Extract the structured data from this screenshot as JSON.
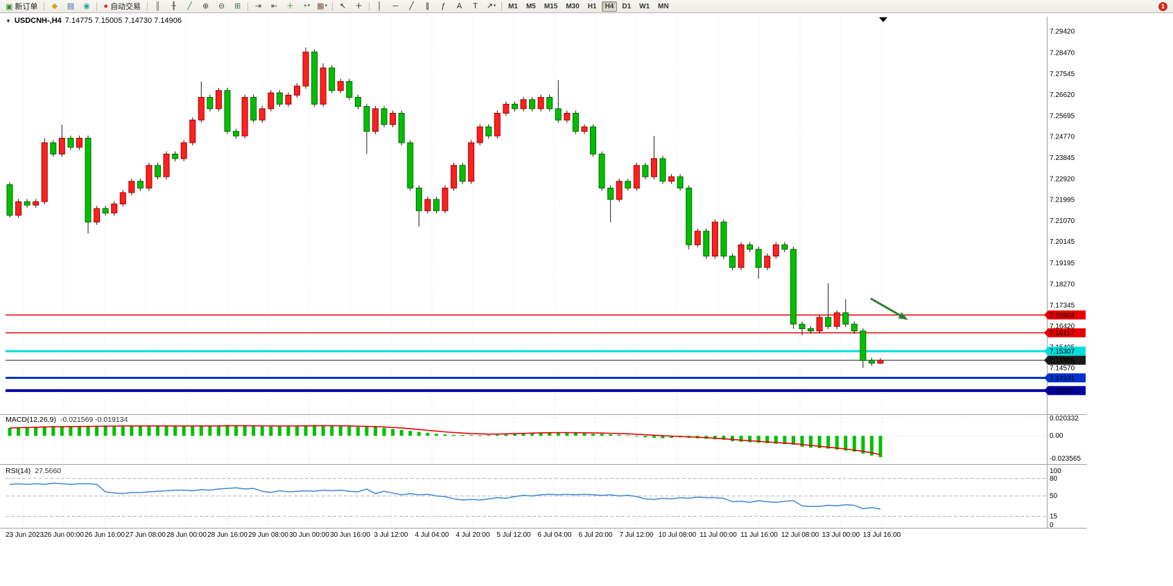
{
  "toolbar": {
    "items": [
      {
        "type": "button",
        "name": "new-order-button",
        "glyph": "▣",
        "color": "#2e8b2e",
        "label": "新订单"
      },
      {
        "type": "sep"
      },
      {
        "type": "icon",
        "name": "market-watch-icon",
        "glyph": "◆",
        "color": "#d4a017"
      },
      {
        "type": "icon",
        "name": "data-window-icon",
        "glyph": "▤",
        "color": "#4169aa"
      },
      {
        "type": "icon",
        "name": "navigator-icon",
        "glyph": "◉",
        "color": "#2aa198"
      },
      {
        "type": "sep"
      },
      {
        "type": "button",
        "name": "autotrading-button",
        "glyph": "●",
        "color": "#d22a1e",
        "label": "自动交易"
      },
      {
        "type": "sep"
      },
      {
        "type": "icon",
        "name": "bar-chart-icon",
        "glyph": "║",
        "color": "#555555"
      },
      {
        "type": "icon",
        "name": "candlestick-chart-icon",
        "glyph": "╂",
        "color": "#555555"
      },
      {
        "type": "icon",
        "name": "line-chart-icon",
        "glyph": "╱",
        "color": "#3a7d3a"
      },
      {
        "type": "icon",
        "name": "zoom-in-icon",
        "glyph": "⊕",
        "color": "#444444"
      },
      {
        "type": "icon",
        "name": "zoom-out-icon",
        "glyph": "⊖",
        "color": "#444444"
      },
      {
        "type": "icon",
        "name": "tile-windows-icon",
        "glyph": "⊞",
        "color": "#3a7d3a"
      },
      {
        "type": "sep"
      },
      {
        "type": "icon",
        "name": "auto-scroll-icon",
        "glyph": "⇥",
        "color": "#444444"
      },
      {
        "type": "icon",
        "name": "chart-shift-icon",
        "glyph": "⇤",
        "color": "#444444"
      },
      {
        "type": "icon",
        "name": "indicators-icon",
        "glyph": "＋",
        "color": "#2e8b2e"
      },
      {
        "type": "icon",
        "name": "periods-icon",
        "glyph": "◔",
        "color": "#444444",
        "caret": true
      },
      {
        "type": "icon",
        "name": "templates-icon",
        "glyph": "▦",
        "color": "#7a5c2e",
        "caret": true
      },
      {
        "type": "sep"
      },
      {
        "type": "icon",
        "name": "cursor-icon",
        "glyph": "↖",
        "color": "#222222"
      },
      {
        "type": "icon",
        "name": "crosshair-icon",
        "glyph": "＋",
        "color": "#222222"
      },
      {
        "type": "sep"
      },
      {
        "type": "icon",
        "name": "vertical-line-icon",
        "glyph": "│",
        "color": "#222222"
      },
      {
        "type": "icon",
        "name": "horizontal-line-icon",
        "glyph": "─",
        "color": "#222222"
      },
      {
        "type": "icon",
        "name": "trendline-icon",
        "glyph": "╱",
        "color": "#222222"
      },
      {
        "type": "icon",
        "name": "channel-icon",
        "glyph": "∥",
        "color": "#222222"
      },
      {
        "type": "icon",
        "name": "fibonacci-icon",
        "glyph": "ƒ",
        "color": "#222222"
      },
      {
        "type": "icon",
        "name": "text-icon",
        "glyph": "A",
        "color": "#222222"
      },
      {
        "type": "icon",
        "name": "label-icon",
        "glyph": "T",
        "color": "#222222"
      },
      {
        "type": "icon",
        "name": "arrows-icon",
        "glyph": "↗",
        "color": "#222222",
        "caret": true
      },
      {
        "type": "sep"
      }
    ],
    "timeframes": [
      "M1",
      "M5",
      "M15",
      "M30",
      "H1",
      "H4",
      "D1",
      "W1",
      "MN"
    ],
    "active_timeframe": "H4",
    "alert_badge": "1"
  },
  "chart_data": {
    "type": "candlestick",
    "symbol": "USDCNH-",
    "timeframe": "H4",
    "header_text": "USDCNH-,H4",
    "header_ohlc": "7.14775 7.15005 7.14730 7.14906",
    "up_color": "#ff2020",
    "down_color": "#00c000",
    "first_open": 7.2265,
    "default_wick": 0.0012,
    "closes": [
      7.213,
      7.219,
      7.2175,
      7.219,
      7.245,
      7.24,
      7.247,
      7.243,
      7.247,
      7.21,
      7.216,
      7.214,
      7.218,
      7.223,
      7.228,
      7.225,
      7.235,
      7.23,
      7.24,
      7.238,
      7.245,
      7.255,
      7.265,
      7.26,
      7.268,
      7.25,
      7.248,
      7.265,
      7.255,
      7.26,
      7.267,
      7.262,
      7.266,
      7.27,
      7.285,
      7.262,
      7.278,
      7.268,
      7.272,
      7.265,
      7.261,
      7.25,
      7.26,
      7.253,
      7.258,
      7.245,
      7.225,
      7.215,
      7.22,
      7.215,
      7.225,
      7.235,
      7.228,
      7.245,
      7.252,
      7.248,
      7.258,
      7.262,
      7.26,
      7.264,
      7.26,
      7.265,
      7.26,
      7.255,
      7.258,
      7.25,
      7.252,
      7.24,
      7.225,
      7.22,
      7.228,
      7.225,
      7.235,
      7.23,
      7.238,
      7.228,
      7.23,
      7.225,
      7.2,
      7.206,
      7.195,
      7.21,
      7.195,
      7.19,
      7.2,
      7.198,
      7.19,
      7.195,
      7.2,
      7.198,
      7.165,
      7.163,
      7.162,
      7.168,
      7.164,
      7.17,
      7.165,
      7.162,
      7.149,
      7.1478,
      7.14906
    ],
    "high_overrides": {
      "4": 7.247,
      "6": 7.253,
      "22": 7.272,
      "34": 7.287,
      "36": 7.28,
      "63": 7.2725,
      "74": 7.248,
      "94": 7.183,
      "96": 7.176,
      "100": 7.15005
    },
    "low_overrides": {
      "0": 7.212,
      "9": 7.205,
      "41": 7.24,
      "47": 7.208,
      "69": 7.21,
      "78": 7.198,
      "86": 7.185,
      "90": 7.163,
      "91": 7.16,
      "98": 7.1457,
      "100": 7.1473
    },
    "y_axis_labels": [
      "7.29420",
      "7.28470",
      "7.27545",
      "7.26620",
      "7.25695",
      "7.24770",
      "7.23845",
      "7.22920",
      "7.21995",
      "7.21070",
      "7.20145",
      "7.19195",
      "7.18270",
      "7.17345",
      "7.16420",
      "7.15495",
      "7.14570"
    ],
    "x_labels": [
      "23 Jun 2023",
      "26 Jun 00:00",
      "26 Jun 16:00",
      "27 Jun 08:00",
      "28 Jun 00:00",
      "28 Jun 16:00",
      "29 Jun 08:00",
      "30 Jun 00:00",
      "30 Jun 16:00",
      "3 Jul 12:00",
      "4 Jul 04:00",
      "4 Jul 20:00",
      "5 Jul 12:00",
      "6 Jul 04:00",
      "6 Jul 20:00",
      "7 Jul 12:00",
      "10 Jul 08:00",
      "11 Jul 00:00",
      "11 Jul 16:00",
      "12 Jul 08:00",
      "13 Jul 00:00",
      "13 Jul 16:00"
    ],
    "hlines": [
      {
        "label": "7.16903",
        "value": 7.16903,
        "color": "#e60000",
        "badge_bg": "#e60000",
        "text_color": "#ffffff",
        "thickness": 1.5
      },
      {
        "label": "7.16117",
        "value": 7.16117,
        "color": "#e60000",
        "badge_bg": "#e60000",
        "text_color": "#ffffff",
        "thickness": 1.5
      },
      {
        "label": "7.15307",
        "value": 7.15307,
        "color": "#00dede",
        "badge_bg": "#00dede",
        "text_color": "#00249a",
        "thickness": 3
      },
      {
        "label": "7.14906",
        "value": 7.14906,
        "color": "#1a1a1a",
        "badge_bg": "#1a1a1a",
        "text_color": "#ffffff",
        "thickness": 1
      },
      {
        "label": "7.14131",
        "value": 7.14131,
        "color": "#0033cc",
        "badge_bg": "#0033cc",
        "text_color": "#ffffff",
        "thickness": 3
      },
      {
        "label": "7.13570",
        "value": 7.1357,
        "color": "#0000a0",
        "badge_bg": "#0000a0",
        "text_color": "#ffffff",
        "thickness": 4
      }
    ],
    "macd": {
      "label": "MACD(12,26,9)",
      "values_text": "-0.021569 -0.019134",
      "hist_color": "#00c000",
      "signal_color": "#e60000",
      "axis_labels": [
        "0.020332",
        "0.00",
        "-0.023565"
      ],
      "hist": [
        0.008,
        0.0085,
        0.009,
        0.009,
        0.0095,
        0.01,
        0.0095,
        0.009,
        0.0095,
        0.01,
        0.01,
        0.0105,
        0.01,
        0.0095,
        0.01,
        0.01,
        0.0095,
        0.01,
        0.0105,
        0.01,
        0.01,
        0.01,
        0.0105,
        0.01,
        0.0105,
        0.011,
        0.0105,
        0.01,
        0.01,
        0.0095,
        0.0095,
        0.01,
        0.0095,
        0.01,
        0.0105,
        0.011,
        0.0105,
        0.01,
        0.01,
        0.0095,
        0.009,
        0.01,
        0.009,
        0.008,
        0.007,
        0.006,
        0.005,
        0.004,
        0.003,
        0.002,
        0.0015,
        0.001,
        0.0008,
        0.0006,
        0.0005,
        0.0008,
        0.001,
        0.0015,
        0.002,
        0.0025,
        0.003,
        0.0035,
        0.0035,
        0.0035,
        0.003,
        0.003,
        0.0025,
        0.002,
        0.002,
        0.0015,
        0.001,
        0.0005,
        -0.0005,
        -0.0015,
        -0.002,
        -0.0025,
        -0.002,
        -0.0015,
        -0.002,
        -0.0025,
        -0.003,
        -0.0035,
        -0.004,
        -0.0055,
        -0.006,
        -0.0065,
        -0.007,
        -0.0075,
        -0.008,
        -0.0085,
        -0.009,
        -0.011,
        -0.012,
        -0.0125,
        -0.013,
        -0.014,
        -0.015,
        -0.016,
        -0.018,
        -0.02,
        -0.0216
      ],
      "signal": [
        0.008,
        0.0082,
        0.0085,
        0.0087,
        0.009,
        0.0092,
        0.0093,
        0.0094,
        0.0095,
        0.0096,
        0.0097,
        0.0098,
        0.0099,
        0.01,
        0.01,
        0.01,
        0.01,
        0.01,
        0.01,
        0.01,
        0.01,
        0.01,
        0.01,
        0.01,
        0.01,
        0.0102,
        0.0103,
        0.0103,
        0.0102,
        0.0101,
        0.01,
        0.01,
        0.01,
        0.01,
        0.0101,
        0.0102,
        0.0103,
        0.0103,
        0.0102,
        0.01,
        0.0098,
        0.0096,
        0.0094,
        0.009,
        0.0085,
        0.008,
        0.0072,
        0.0064,
        0.0056,
        0.0048,
        0.004,
        0.0034,
        0.0028,
        0.0023,
        0.002,
        0.0018,
        0.0018,
        0.002,
        0.0022,
        0.0025,
        0.0028,
        0.003,
        0.0032,
        0.0033,
        0.0033,
        0.0032,
        0.0031,
        0.003,
        0.0028,
        0.0026,
        0.0023,
        0.002,
        0.0016,
        0.0011,
        0.0006,
        0.0001,
        -0.0003,
        -0.0007,
        -0.001,
        -0.0014,
        -0.0019,
        -0.0024,
        -0.003,
        -0.0037,
        -0.0044,
        -0.005,
        -0.0056,
        -0.0062,
        -0.0068,
        -0.0074,
        -0.008,
        -0.0088,
        -0.0097,
        -0.0106,
        -0.0115,
        -0.0124,
        -0.0134,
        -0.0145,
        -0.0157,
        -0.0172,
        -0.0191
      ]
    },
    "rsi": {
      "label": "RSI(14)",
      "value_text": "27.5660",
      "line_color": "#3f86d2",
      "levels": [
        80,
        50,
        15
      ],
      "axis_labels": [
        "100",
        "80",
        "50",
        "15",
        "0"
      ],
      "values": [
        70,
        71,
        70,
        71,
        70,
        72,
        71,
        70,
        71,
        71,
        70,
        57,
        55,
        54,
        56,
        56,
        57,
        58,
        59,
        60,
        60,
        59,
        61,
        60,
        62,
        63,
        64,
        62,
        63,
        58,
        56,
        59,
        57,
        58,
        59,
        58,
        60,
        59,
        60,
        58,
        57,
        62,
        54,
        58,
        55,
        52,
        54,
        52,
        53,
        50,
        49,
        45,
        43,
        44,
        43,
        45,
        47,
        46,
        49,
        51,
        50,
        52,
        53,
        52,
        53,
        52,
        53,
        52,
        51,
        52,
        50,
        51,
        49,
        45,
        44,
        46,
        45,
        47,
        46,
        48,
        47,
        47,
        46,
        40,
        41,
        39,
        42,
        40,
        39,
        41,
        42,
        33,
        32,
        32,
        34,
        33,
        35,
        34,
        28,
        30,
        27.57
      ]
    },
    "annotation": {
      "type": "arrow",
      "color": "#2f7d32"
    }
  }
}
